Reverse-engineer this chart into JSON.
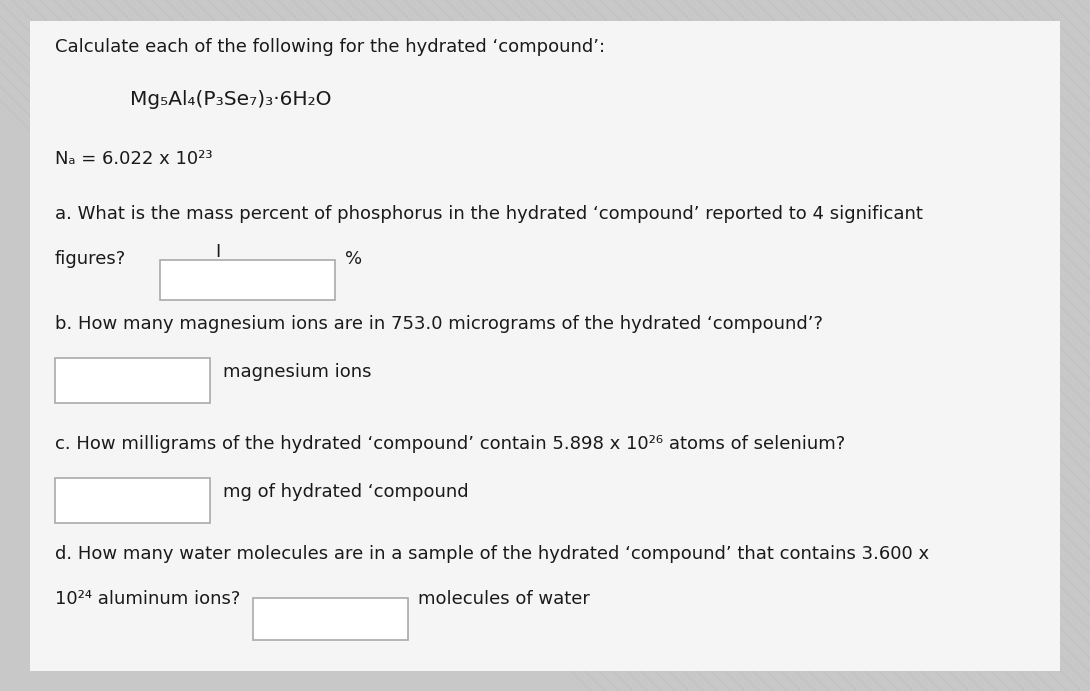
{
  "bg_color": "#c8c8c8",
  "panel_color": "#f0f0f0",
  "text_color": "#1a1a1a",
  "box_color": "#ffffff",
  "box_border": "#aaaaaa",
  "title_line": "Calculate each of the following for the hydrated ‘compound’:",
  "compound_line": "Mg₅Al₄(P₃Se₇)₃·6H₂O",
  "avogadro_line": "Nₐ = 6.022 x 10²³",
  "q_a_line1": "a. What is the mass percent of phosphorus in the hydrated ‘compound’ reported to 4 significant",
  "q_a_line2": "figures?",
  "q_a_suffix": "%",
  "q_b_line": "b. How many magnesium ions are in 753.0 micrograms of the hydrated ‘compound’?",
  "q_b_suffix": "magnesium ions",
  "q_c_line": "c. How milligrams of the hydrated ‘compound’ contain 5.898 x 10²⁶ atoms of selenium?",
  "q_c_suffix": "mg of hydrated ‘compound",
  "q_d_line1": "d. How many water molecules are in a sample of the hydrated ‘compound’ that contains 3.600 x",
  "q_d_line2_prefix": "10²⁴ aluminum ions?",
  "q_d_suffix": "molecules of water",
  "font_size_main": 13.0,
  "font_size_compound": 14.5
}
